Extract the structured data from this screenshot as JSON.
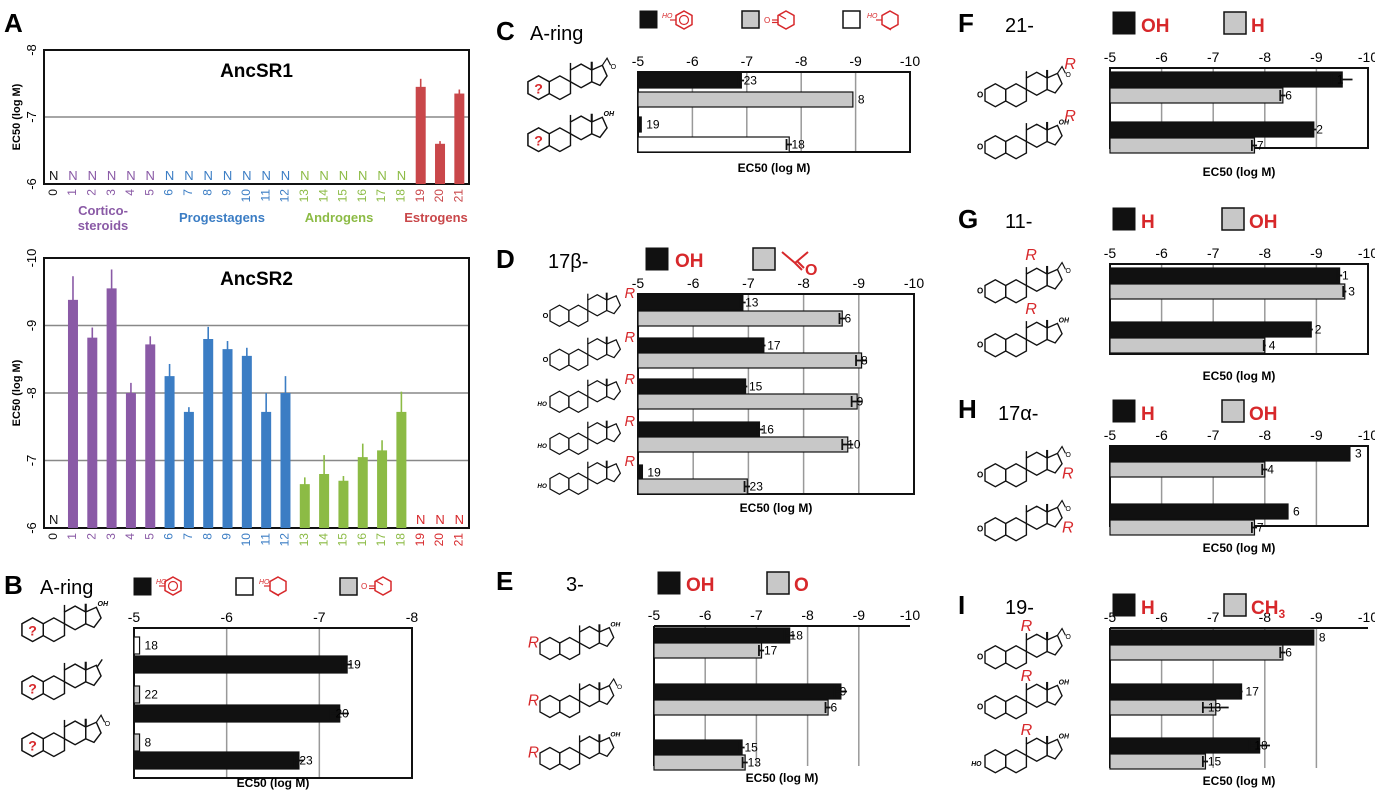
{
  "colors": {
    "red": "#d7282b",
    "purple": "#8a5aa6",
    "blue": "#3b7dc4",
    "green": "#8cbb45",
    "estrogen": "#c9474a",
    "black": "#111111",
    "gray": "#c8c8c8",
    "white": "#ffffff"
  },
  "chart_data": [
    {
      "panel": "A",
      "type": "bar",
      "title": "AncSR1",
      "ylabel": "EC50 (log M)",
      "ylim": [
        -6,
        -8
      ],
      "yticks": [
        "-6",
        "-7",
        "-8"
      ],
      "categories": [
        "0",
        "1",
        "2",
        "3",
        "4",
        "5",
        "6",
        "7",
        "8",
        "9",
        "10",
        "11",
        "12",
        "13",
        "14",
        "15",
        "16",
        "17",
        "18",
        "19",
        "20",
        "21"
      ],
      "values": [
        null,
        null,
        null,
        null,
        null,
        null,
        null,
        null,
        null,
        null,
        null,
        null,
        null,
        null,
        null,
        null,
        null,
        null,
        null,
        -7.45,
        -6.6,
        -7.35
      ],
      "errors": [
        0,
        0,
        0,
        0,
        0,
        0,
        0,
        0,
        0,
        0,
        0,
        0,
        0,
        0,
        0,
        0,
        0,
        0,
        0,
        0.12,
        0.04,
        0.06
      ],
      "no_activity_label": "N",
      "groups": [
        {
          "label": "Cortico-\nsteroids",
          "range": [
            1,
            5
          ],
          "color": "#8a5aa6"
        },
        {
          "label": "Progestagens",
          "range": [
            6,
            12
          ],
          "color": "#3b7dc4"
        },
        {
          "label": "Androgens",
          "range": [
            13,
            18
          ],
          "color": "#8cbb45"
        },
        {
          "label": "Estrogens",
          "range": [
            19,
            21
          ],
          "color": "#c9474a"
        }
      ]
    },
    {
      "panel": "A",
      "type": "bar",
      "title": "AncSR2",
      "ylabel": "EC50 (log M)",
      "ylim": [
        -6,
        -10
      ],
      "yticks": [
        "-6",
        "-7",
        "-8",
        "-9",
        "-10"
      ],
      "categories": [
        "0",
        "1",
        "2",
        "3",
        "4",
        "5",
        "6",
        "7",
        "8",
        "9",
        "10",
        "11",
        "12",
        "13",
        "14",
        "15",
        "16",
        "17",
        "18",
        "19",
        "20",
        "21"
      ],
      "values": [
        null,
        -9.38,
        -8.82,
        -9.55,
        -8.0,
        -8.72,
        -8.25,
        -7.72,
        -8.8,
        -8.65,
        -8.55,
        -7.72,
        -8.0,
        -6.65,
        -6.8,
        -6.7,
        -7.05,
        -7.15,
        -7.72,
        null,
        null,
        null
      ],
      "errors": [
        0,
        0.35,
        0.15,
        0.28,
        0.15,
        0.12,
        0.18,
        0.07,
        0.18,
        0.12,
        0.12,
        0.28,
        0.25,
        0.1,
        0.28,
        0.07,
        0.2,
        0.15,
        0.3,
        0,
        0,
        0
      ],
      "no_activity_label": "N"
    },
    {
      "panel": "B",
      "type": "bar",
      "orientation": "horizontal",
      "header": "A-ring",
      "xlabel": "EC50 (log M)",
      "xlim": [
        -5,
        -8
      ],
      "xticks": [
        "-5",
        "-6",
        "-7",
        "-8"
      ],
      "legend": [
        "black",
        "white",
        "gray"
      ],
      "bars": [
        {
          "row": 0,
          "fill": "white",
          "value": -5.06,
          "error": 0,
          "label": "18"
        },
        {
          "row": 0,
          "fill": "black",
          "value": -7.3,
          "error": 0.05,
          "label": "19"
        },
        {
          "row": 1,
          "fill": "gray",
          "value": -5.06,
          "error": 0,
          "label": "22"
        },
        {
          "row": 1,
          "fill": "black",
          "value": -7.22,
          "error": 0.1,
          "label": "20"
        },
        {
          "row": 2,
          "fill": "gray",
          "value": -5.06,
          "error": 0,
          "label": "8"
        },
        {
          "row": 2,
          "fill": "black",
          "value": -6.78,
          "error": 0.05,
          "label": "23"
        }
      ]
    },
    {
      "panel": "C",
      "type": "bar",
      "orientation": "horizontal",
      "header": "A-ring",
      "xlabel": "EC50 (log M)",
      "xlim": [
        -5,
        -10
      ],
      "xticks": [
        "-5",
        "-6",
        "-7",
        "-8",
        "-9",
        "-10"
      ],
      "legend": [
        "black",
        "gray",
        "white"
      ],
      "bars": [
        {
          "row": 0,
          "fill": "black",
          "value": -6.9,
          "error": 0.05,
          "label": "23"
        },
        {
          "row": 0,
          "fill": "gray",
          "value": -8.95,
          "error": 0,
          "label": "8"
        },
        {
          "row": 1,
          "fill": "black",
          "value": -5.06,
          "error": 0,
          "label": "19"
        },
        {
          "row": 1,
          "fill": "white",
          "value": -7.78,
          "error": 0.05,
          "label": "18"
        }
      ]
    },
    {
      "panel": "D",
      "type": "bar",
      "orientation": "horizontal",
      "header": "17β-",
      "xlabel": "EC50 (log M)",
      "xlim": [
        -5,
        -10
      ],
      "xticks": [
        "-5",
        "-6",
        "-7",
        "-8",
        "-9",
        "-10"
      ],
      "legend": [
        "OH",
        "ketone"
      ],
      "bars": [
        {
          "row": 0,
          "fill": "black",
          "value": -6.9,
          "error": 0.05,
          "label": "13"
        },
        {
          "row": 0,
          "fill": "gray",
          "value": -8.7,
          "error": 0.05,
          "label": "6"
        },
        {
          "row": 1,
          "fill": "black",
          "value": -7.28,
          "error": 0.03,
          "label": "17"
        },
        {
          "row": 1,
          "fill": "gray",
          "value": -9.05,
          "error": 0.1,
          "label": "8"
        },
        {
          "row": 2,
          "fill": "black",
          "value": -6.95,
          "error": 0.03,
          "label": "15"
        },
        {
          "row": 2,
          "fill": "gray",
          "value": -8.97,
          "error": 0.1,
          "label": "9"
        },
        {
          "row": 3,
          "fill": "black",
          "value": -7.2,
          "error": 0.07,
          "label": "16"
        },
        {
          "row": 3,
          "fill": "gray",
          "value": -8.8,
          "error": 0.1,
          "label": "10"
        },
        {
          "row": 4,
          "fill": "black",
          "value": -5.08,
          "error": 0,
          "label": "19"
        },
        {
          "row": 4,
          "fill": "gray",
          "value": -6.98,
          "error": 0.05,
          "label": "23"
        }
      ]
    },
    {
      "panel": "E",
      "type": "bar",
      "orientation": "horizontal",
      "header": "3-",
      "xlabel": "EC50 (log M)",
      "xlim": [
        -5,
        -10
      ],
      "xticks": [
        "-5",
        "-6",
        "-7",
        "-8",
        "-9",
        "-10"
      ],
      "legend": [
        "OH",
        "O"
      ],
      "bars": [
        {
          "row": 0,
          "fill": "black",
          "value": -7.65,
          "error": 0.1,
          "label": "18"
        },
        {
          "row": 0,
          "fill": "gray",
          "value": -7.1,
          "error": 0.05,
          "label": "17"
        },
        {
          "row": 1,
          "fill": "black",
          "value": -8.65,
          "error": 0.12,
          "label": "9"
        },
        {
          "row": 1,
          "fill": "gray",
          "value": -8.4,
          "error": 0.05,
          "label": "6"
        },
        {
          "row": 2,
          "fill": "black",
          "value": -6.72,
          "error": 0.05,
          "label": "15"
        },
        {
          "row": 2,
          "fill": "gray",
          "value": -6.78,
          "error": 0.05,
          "label": "13"
        }
      ]
    },
    {
      "panel": "F",
      "type": "bar",
      "orientation": "horizontal",
      "header": "21-",
      "xlabel": "EC50 (log M)",
      "xlim": [
        -5,
        -10
      ],
      "xticks": [
        "-5",
        "-6",
        "-7",
        "-8",
        "-9",
        "-10"
      ],
      "legend": [
        "OH",
        "H"
      ],
      "bars": [
        {
          "row": 0,
          "fill": "black",
          "value": -9.5,
          "error": 0.2,
          "label": "1"
        },
        {
          "row": 0,
          "fill": "gray",
          "value": -8.35,
          "error": 0.05,
          "label": "6"
        },
        {
          "row": 1,
          "fill": "black",
          "value": -8.95,
          "error": 0.05,
          "label": "2"
        },
        {
          "row": 1,
          "fill": "gray",
          "value": -7.8,
          "error": 0.05,
          "label": "7"
        }
      ]
    },
    {
      "panel": "G",
      "type": "bar",
      "orientation": "horizontal",
      "header": "11-",
      "xlabel": "EC50 (log M)",
      "xlim": [
        -5,
        -10
      ],
      "xticks": [
        "-5",
        "-6",
        "-7",
        "-8",
        "-9",
        "-10"
      ],
      "legend": [
        "H",
        "OH"
      ],
      "bars": [
        {
          "row": 0,
          "fill": "black",
          "value": -9.45,
          "error": 0.05,
          "label": "1"
        },
        {
          "row": 0,
          "fill": "gray",
          "value": -9.55,
          "error": 0.03,
          "label": "3"
        },
        {
          "row": 1,
          "fill": "black",
          "value": -8.9,
          "error": 0.03,
          "label": "2"
        },
        {
          "row": 1,
          "fill": "gray",
          "value": -8.0,
          "error": 0.02,
          "label": "4"
        }
      ]
    },
    {
      "panel": "H",
      "type": "bar",
      "orientation": "horizontal",
      "header": "17α-",
      "xlabel": "EC50 (log M)",
      "xlim": [
        -5,
        -10
      ],
      "xticks": [
        "-5",
        "-6",
        "-7",
        "-8",
        "-9",
        "-10"
      ],
      "legend": [
        "H",
        "OH"
      ],
      "bars": [
        {
          "row": 0,
          "fill": "black",
          "value": -9.65,
          "error": 0,
          "label": "3"
        },
        {
          "row": 0,
          "fill": "gray",
          "value": -8.0,
          "error": 0.05,
          "label": "4"
        },
        {
          "row": 1,
          "fill": "black",
          "value": -8.45,
          "error": 0,
          "label": "6"
        },
        {
          "row": 1,
          "fill": "gray",
          "value": -7.8,
          "error": 0.05,
          "label": "7"
        }
      ]
    },
    {
      "panel": "I",
      "type": "bar",
      "orientation": "horizontal",
      "header": "19-",
      "xlabel": "EC50 (log M)",
      "xlim": [
        -5,
        -10
      ],
      "xticks": [
        "-5",
        "-6",
        "-7",
        "-8",
        "-9",
        "-10"
      ],
      "legend": [
        "H",
        "CH3"
      ],
      "bars": [
        {
          "row": 0,
          "fill": "black",
          "value": -8.95,
          "error": 0,
          "label": "8"
        },
        {
          "row": 0,
          "fill": "gray",
          "value": -8.35,
          "error": 0.05,
          "label": "6"
        },
        {
          "row": 1,
          "fill": "black",
          "value": -7.55,
          "error": 0.02,
          "label": "17"
        },
        {
          "row": 1,
          "fill": "gray",
          "value": -7.05,
          "error": 0.25,
          "label": "13"
        },
        {
          "row": 2,
          "fill": "black",
          "value": -7.9,
          "error": 0.2,
          "label": "18"
        },
        {
          "row": 2,
          "fill": "gray",
          "value": -6.85,
          "error": 0.05,
          "label": "15"
        }
      ]
    }
  ],
  "panel_letters": {
    "A": "A",
    "B": "B",
    "C": "C",
    "D": "D",
    "E": "E",
    "F": "F",
    "G": "G",
    "H": "H",
    "I": "I"
  },
  "legend_text": {
    "OH": "OH",
    "H": "H",
    "O": "O",
    "CH3": "CH",
    "CH3_sub": "3",
    "mol_OH": "OH",
    "mol_HO": "HO",
    "mol_O": "O",
    "mol_R": "R",
    "mol_q": "?"
  },
  "groups_text": {
    "corticosteroids_1": "Cortico-",
    "corticosteroids_2": "steroids",
    "progestagens": "Progestagens",
    "androgens": "Androgens",
    "estrogens": "Estrogens"
  }
}
